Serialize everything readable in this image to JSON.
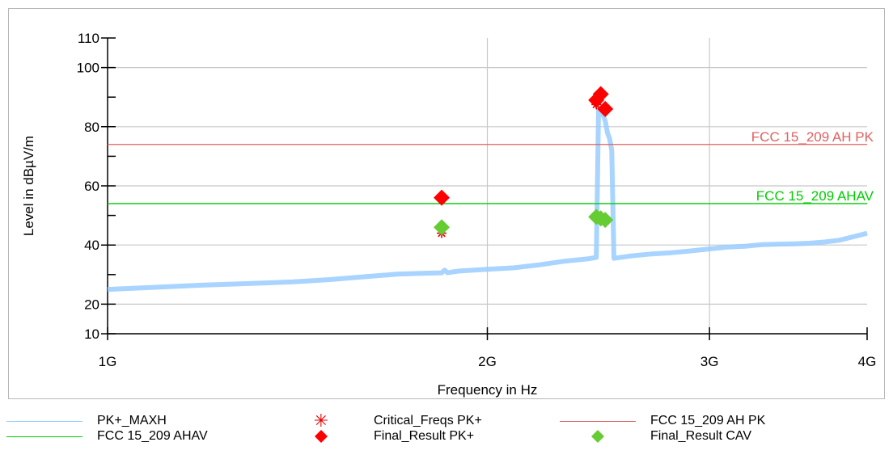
{
  "chart_data": {
    "type": "line",
    "title": "",
    "xlabel": "Frequency in Hz",
    "ylabel": "Level in dBµV/m",
    "x_scale": "log",
    "xlim": [
      1000000000,
      4000000000
    ],
    "ylim": [
      10,
      110
    ],
    "x_ticks": [
      {
        "value": 1000000000,
        "label": "1G"
      },
      {
        "value": 2000000000,
        "label": "2G"
      },
      {
        "value": 3000000000,
        "label": "3G"
      },
      {
        "value": 4000000000,
        "label": "4G"
      }
    ],
    "y_ticks": [
      10,
      20,
      40,
      60,
      80,
      100,
      110
    ],
    "y_minor_ticks": [
      30,
      50,
      70,
      90
    ],
    "grid": true,
    "series": [
      {
        "name": "PK+_MAXH",
        "kind": "line",
        "color": "#99ccff",
        "x": [
          1000000000,
          1100000000,
          1200000000,
          1300000000,
          1400000000,
          1500000000,
          1600000000,
          1700000000,
          1800000000,
          1840000000,
          1850000000,
          1860000000,
          1870000000,
          1900000000,
          2000000000,
          2100000000,
          2200000000,
          2300000000,
          2400000000,
          2440000000,
          2450000000,
          2460000000,
          2470000000,
          2480000000,
          2490000000,
          2500000000,
          2510000000,
          2520000000,
          2600000000,
          2700000000,
          2800000000,
          2900000000,
          3000000000,
          3100000000,
          3200000000,
          3300000000,
          3400000000,
          3500000000,
          3600000000,
          3700000000,
          3800000000,
          3900000000,
          4000000000
        ],
        "y": [
          25,
          25.8,
          26.5,
          27,
          27.5,
          28.3,
          29.3,
          30.2,
          30.5,
          30.6,
          31.5,
          30.6,
          30.8,
          31.2,
          31.8,
          32.3,
          33.3,
          34.5,
          35.3,
          35.8,
          86,
          85,
          84,
          82,
          78,
          76,
          72,
          35.5,
          36.3,
          37,
          37.4,
          38,
          38.7,
          39.3,
          39.6,
          40.1,
          40.3,
          40.4,
          40.6,
          41,
          41.6,
          42.8,
          44
        ]
      },
      {
        "name": "FCC 15_209 AHAV",
        "kind": "limit",
        "color": "#00cc00",
        "x": [
          1000000000,
          4000000000
        ],
        "y": [
          54,
          54
        ]
      },
      {
        "name": "Critical_Freqs PK+",
        "kind": "asterisk",
        "color": "#e00000",
        "x": [
          1840000000,
          2440000000
        ],
        "y": [
          44,
          87.5
        ]
      },
      {
        "name": "Final_Result PK+",
        "kind": "diamond",
        "color": "#ff0000",
        "x": [
          1840000000,
          2440000000,
          2460000000,
          2480000000
        ],
        "y": [
          56,
          89,
          91,
          86
        ]
      },
      {
        "name": "FCC 15_209 AH PK",
        "kind": "limit",
        "color": "#e06060",
        "x": [
          1000000000,
          4000000000
        ],
        "y": [
          74,
          74
        ]
      },
      {
        "name": "Final_Result CAV",
        "kind": "diamond",
        "color": "#66cc33",
        "x": [
          1840000000,
          2440000000,
          2460000000,
          2480000000
        ],
        "y": [
          46,
          49.5,
          49,
          48.5
        ]
      }
    ],
    "annotations": [
      {
        "text": "FCC 15_209 AH PK",
        "y": 74,
        "color": "#e06060"
      },
      {
        "text": "FCC 15_209 AHAV",
        "y": 54,
        "color": "#00cc00"
      }
    ]
  },
  "legend": [
    {
      "label": "PK+_MAXH",
      "symbol": "line",
      "color": "#99ccff"
    },
    {
      "label": "Critical_Freqs PK+",
      "symbol": "asterisk",
      "color": "#e00000"
    },
    {
      "label": "FCC 15_209 AH PK",
      "symbol": "line",
      "color": "#e06060"
    },
    {
      "label": "FCC 15_209 AHAV",
      "symbol": "line",
      "color": "#00cc00"
    },
    {
      "label": "Final_Result PK+",
      "symbol": "diamond",
      "color": "#ff0000"
    },
    {
      "label": "Final_Result CAV",
      "symbol": "diamond",
      "color": "#66cc33"
    }
  ]
}
